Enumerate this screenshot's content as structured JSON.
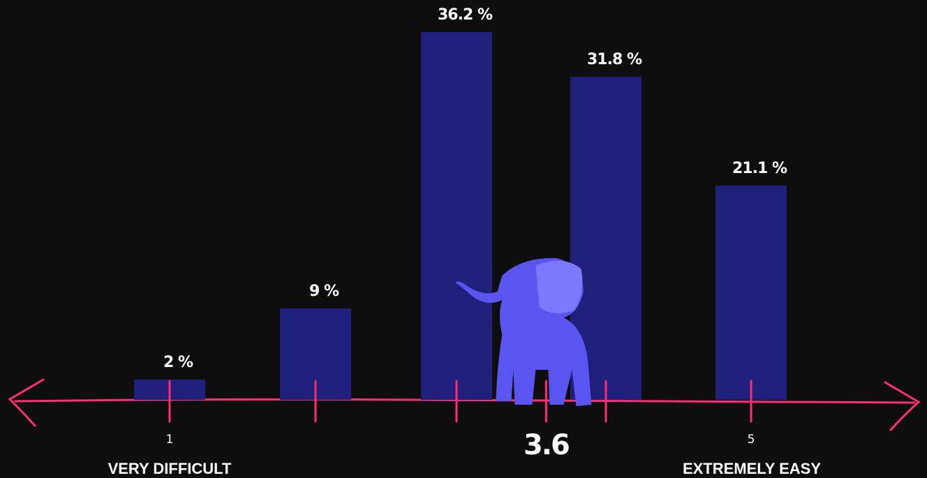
{
  "chart_data": {
    "type": "bar",
    "categories": [
      "1",
      null,
      null,
      null,
      "5"
    ],
    "values": [
      2,
      9,
      36.2,
      31.8,
      21.1
    ],
    "value_labels": [
      "2 %",
      "9 %",
      "36.2 %",
      "31.8 %",
      "21.1 %"
    ],
    "color": "#211f7c",
    "axis_color": "#ff2e73",
    "mean": 3.6,
    "mean_label": "3.6",
    "left_label": "VERY DIFFICULT",
    "right_label": "EXTREMELY EASY"
  }
}
